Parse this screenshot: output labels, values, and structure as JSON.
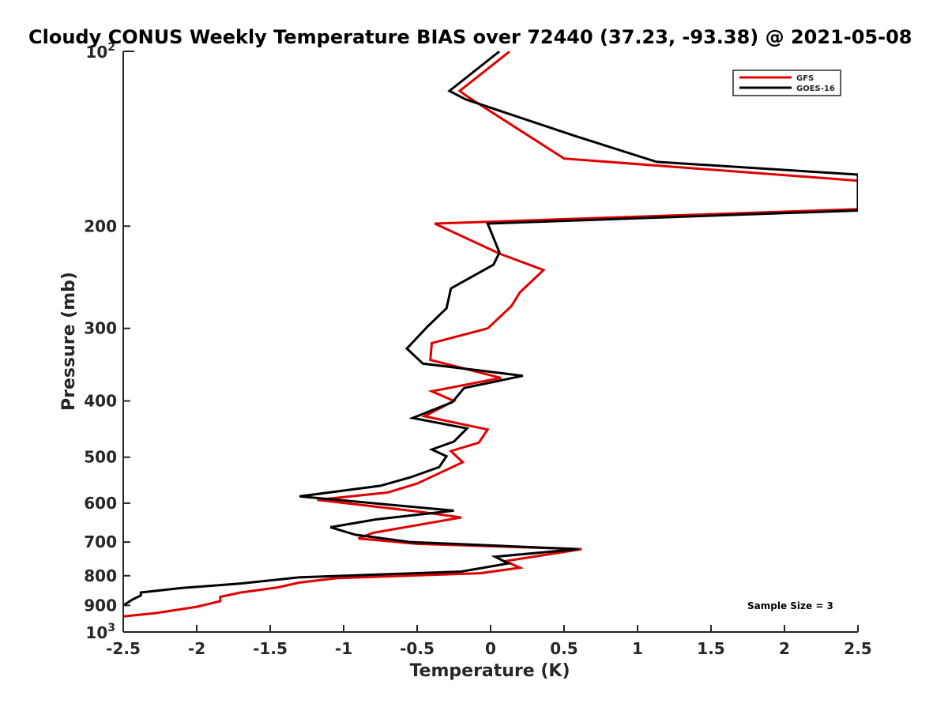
{
  "chart_data": {
    "type": "line",
    "title": "Cloudy CONUS Weekly Temperature BIAS over 72440 (37.23, -93.38) @ 2021-05-08",
    "xlabel": "Temperature (K)",
    "ylabel": "Pressure (mb)",
    "xlim": [
      -2.5,
      2.5
    ],
    "ylim": [
      100,
      1000
    ],
    "y_scale": "log",
    "y_reversed": true,
    "x_ticks": [
      -2.5,
      -2,
      -1.5,
      -1,
      -0.5,
      0,
      0.5,
      1,
      1.5,
      2,
      2.5
    ],
    "x_tick_labels": [
      "-2.5",
      "-2",
      "-1.5",
      "-1",
      "-0.5",
      "0",
      "0.5",
      "1",
      "1.5",
      "2",
      "2.5"
    ],
    "y_ticks": [
      200,
      300,
      400,
      500,
      600,
      700,
      800,
      900
    ],
    "y_tick_labels": [
      "200",
      "300",
      "400",
      "500",
      "600",
      "700",
      "800",
      "900"
    ],
    "y_top_label": {
      "base": "10",
      "exp": "2"
    },
    "y_bottom_label": {
      "base": "10",
      "exp": "3"
    },
    "grid": false,
    "legend_position": "top-right",
    "annotation": "Sample Size = 3",
    "series": [
      {
        "name": "GFS",
        "color": "#e00000",
        "points": [
          [
            0.13,
            100
          ],
          [
            -0.21,
            117
          ],
          [
            -0.15,
            120
          ],
          [
            0.5,
            153
          ],
          [
            2.5,
            167
          ],
          [
            2.5,
            187
          ],
          [
            -0.38,
            198
          ],
          [
            0.06,
            223
          ],
          [
            0.36,
            238
          ],
          [
            0.2,
            260
          ],
          [
            0.14,
            275
          ],
          [
            -0.02,
            300
          ],
          [
            -0.4,
            318
          ],
          [
            -0.41,
            340
          ],
          [
            0.07,
            365
          ],
          [
            -0.4,
            385
          ],
          [
            -0.25,
            400
          ],
          [
            -0.45,
            425
          ],
          [
            -0.02,
            448
          ],
          [
            -0.08,
            472
          ],
          [
            -0.27,
            488
          ],
          [
            -0.19,
            510
          ],
          [
            -0.33,
            530
          ],
          [
            -0.5,
            555
          ],
          [
            -0.7,
            575
          ],
          [
            -1.18,
            592
          ],
          [
            -0.5,
            620
          ],
          [
            -0.2,
            635
          ],
          [
            -0.8,
            675
          ],
          [
            -0.9,
            690
          ],
          [
            -0.5,
            705
          ],
          [
            0.62,
            720
          ],
          [
            0.1,
            755
          ],
          [
            0.2,
            775
          ],
          [
            -0.07,
            792
          ],
          [
            -1.05,
            808
          ],
          [
            -1.3,
            822
          ],
          [
            -1.45,
            838
          ],
          [
            -1.7,
            855
          ],
          [
            -1.84,
            870
          ],
          [
            -1.84,
            885
          ],
          [
            -2.0,
            905
          ],
          [
            -2.28,
            928
          ],
          [
            -2.5,
            940
          ]
        ]
      },
      {
        "name": "GOES-16",
        "color": "#000000",
        "points": [
          [
            0.06,
            100
          ],
          [
            -0.28,
            117
          ],
          [
            -0.17,
            121
          ],
          [
            0.58,
            140
          ],
          [
            1.13,
            155
          ],
          [
            2.5,
            163
          ],
          [
            2.5,
            188
          ],
          [
            -0.02,
            198
          ],
          [
            0.06,
            222
          ],
          [
            0.02,
            233
          ],
          [
            -0.27,
            256
          ],
          [
            -0.3,
            277
          ],
          [
            -0.43,
            298
          ],
          [
            -0.57,
            325
          ],
          [
            -0.46,
            345
          ],
          [
            0.22,
            362
          ],
          [
            -0.18,
            380
          ],
          [
            -0.26,
            402
          ],
          [
            -0.53,
            428
          ],
          [
            -0.16,
            446
          ],
          [
            -0.25,
            470
          ],
          [
            -0.4,
            485
          ],
          [
            -0.3,
            498
          ],
          [
            -0.35,
            520
          ],
          [
            -0.55,
            542
          ],
          [
            -0.75,
            560
          ],
          [
            -1.3,
            584
          ],
          [
            -0.25,
            618
          ],
          [
            -0.78,
            640
          ],
          [
            -1.09,
            660
          ],
          [
            -0.92,
            680
          ],
          [
            -0.55,
            700
          ],
          [
            0.6,
            720
          ],
          [
            0.03,
            742
          ],
          [
            0.12,
            762
          ],
          [
            -0.2,
            787
          ],
          [
            -1.3,
            805
          ],
          [
            -1.7,
            825
          ],
          [
            -2.1,
            840
          ],
          [
            -2.38,
            855
          ],
          [
            -2.38,
            865
          ],
          [
            -2.44,
            880
          ],
          [
            -2.5,
            900
          ]
        ]
      }
    ]
  }
}
